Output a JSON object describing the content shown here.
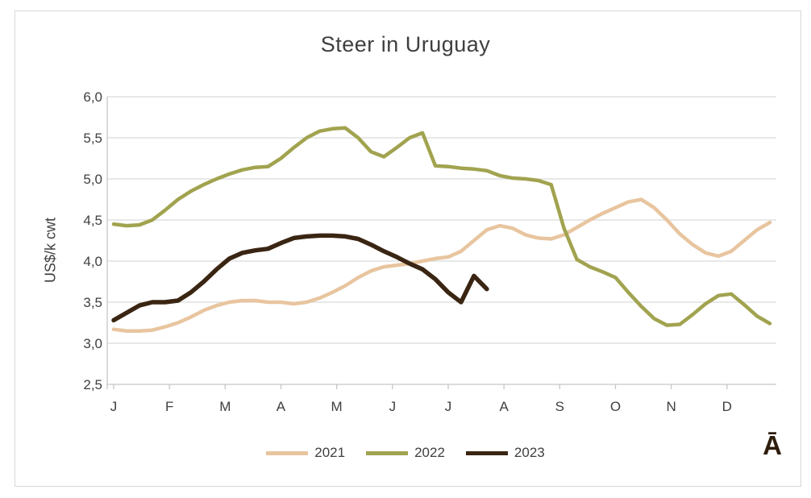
{
  "colors": {
    "text": "#3f3f3f",
    "grid": "#d9d9d9",
    "axis": "#c6c6c6",
    "frame": "#d7d7d7",
    "series_2021": "#e8c59f",
    "series_2022": "#a1a34f",
    "series_2023": "#3a2513"
  },
  "footnote_mark": "Ā",
  "chart_data": {
    "type": "line",
    "title": "Steer in Uruguay",
    "ylabel": "US$/k cwt",
    "ylim": [
      2.5,
      6.0
    ],
    "grid": true,
    "legend_position": "bottom",
    "x_unit": "week",
    "weeks_per_year": 52,
    "categories_months": [
      "J",
      "F",
      "M",
      "A",
      "M",
      "J",
      "J",
      "A",
      "S",
      "O",
      "N",
      "D"
    ],
    "yticks": [
      {
        "value": 6.0,
        "label": "6,0"
      },
      {
        "value": 5.5,
        "label": "5,5"
      },
      {
        "value": 5.0,
        "label": "5,0"
      },
      {
        "value": 4.5,
        "label": "4,5"
      },
      {
        "value": 4.0,
        "label": "4,0"
      },
      {
        "value": 3.5,
        "label": "3,5"
      },
      {
        "value": 3.0,
        "label": "3,0"
      },
      {
        "value": 2.5,
        "label": "2,5"
      }
    ],
    "series": [
      {
        "name": "2021",
        "color": "#e8c59f",
        "width": 4.5,
        "values": [
          3.17,
          3.15,
          3.15,
          3.16,
          3.2,
          3.25,
          3.32,
          3.4,
          3.46,
          3.5,
          3.52,
          3.52,
          3.5,
          3.5,
          3.48,
          3.5,
          3.55,
          3.62,
          3.7,
          3.8,
          3.88,
          3.93,
          3.95,
          3.97,
          4.0,
          4.03,
          4.05,
          4.12,
          4.25,
          4.38,
          4.43,
          4.4,
          4.32,
          4.28,
          4.27,
          4.32,
          4.41,
          4.5,
          4.58,
          4.65,
          4.72,
          4.75,
          4.65,
          4.5,
          4.33,
          4.2,
          4.1,
          4.06,
          4.12,
          4.25,
          4.38,
          4.47
        ]
      },
      {
        "name": "2022",
        "color": "#a1a34f",
        "width": 4.5,
        "values": [
          4.45,
          4.43,
          4.44,
          4.5,
          4.62,
          4.75,
          4.85,
          4.93,
          5.0,
          5.06,
          5.11,
          5.14,
          5.15,
          5.25,
          5.38,
          5.5,
          5.58,
          5.61,
          5.62,
          5.5,
          5.33,
          5.27,
          5.38,
          5.5,
          5.56,
          5.16,
          5.15,
          5.13,
          5.12,
          5.1,
          5.04,
          5.01,
          5.0,
          4.98,
          4.93,
          4.4,
          4.02,
          3.93,
          3.87,
          3.8,
          3.62,
          3.45,
          3.3,
          3.22,
          3.23,
          3.35,
          3.48,
          3.58,
          3.6,
          3.47,
          3.33,
          3.24
        ]
      },
      {
        "name": "2023",
        "color": "#3a2513",
        "width": 5.5,
        "values": [
          3.28,
          3.37,
          3.46,
          3.5,
          3.5,
          3.52,
          3.62,
          3.75,
          3.9,
          4.03,
          4.1,
          4.13,
          4.15,
          4.22,
          4.28,
          4.3,
          4.31,
          4.31,
          4.3,
          4.27,
          4.2,
          4.12,
          4.05,
          3.97,
          3.9,
          3.78,
          3.62,
          3.5,
          3.82,
          3.66
        ]
      }
    ]
  }
}
